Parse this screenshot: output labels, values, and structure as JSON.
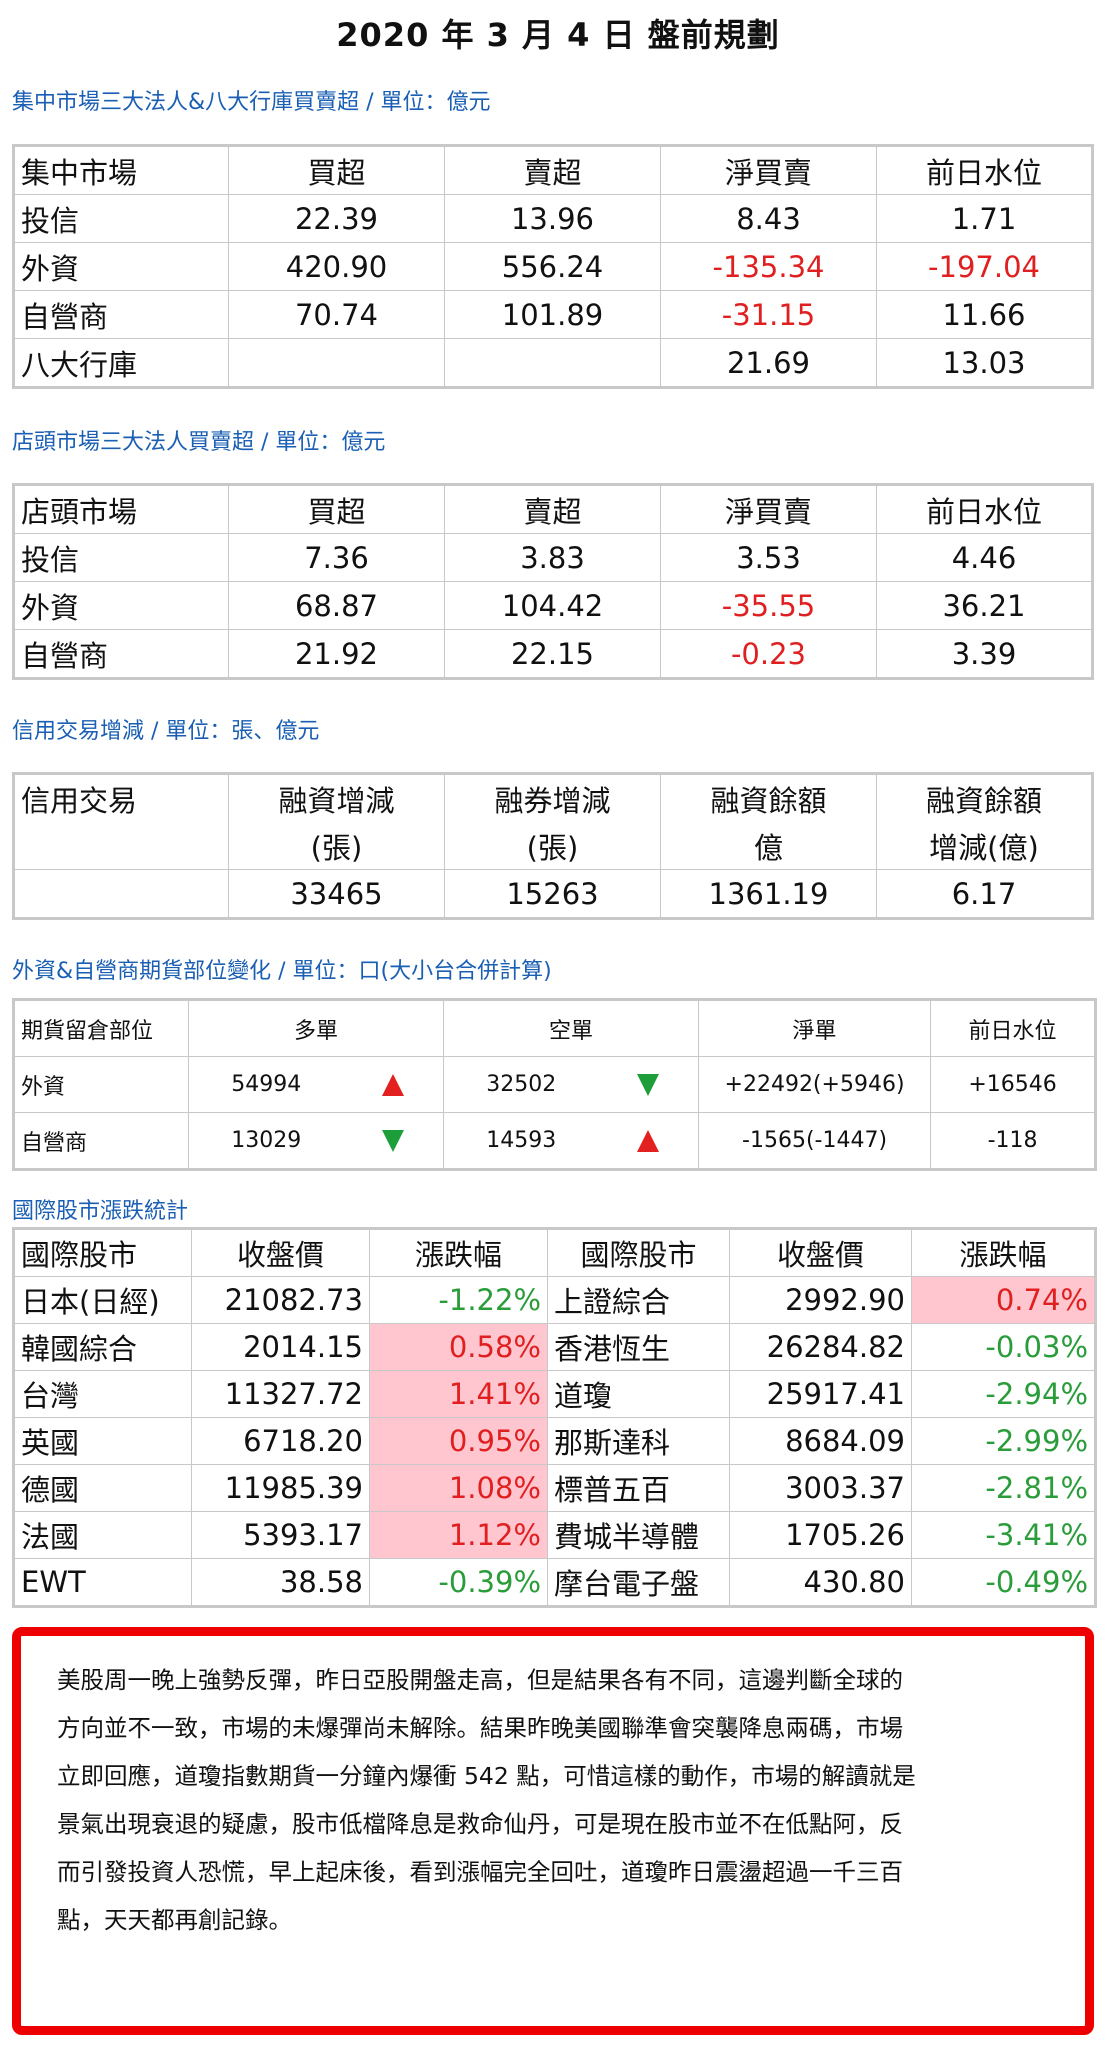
{
  "title": "2020 年 3 月 4 日  盤前規劃",
  "colors": {
    "section_title": "#1a5fb4",
    "negative": "#e02020",
    "positive_intl": "#2a9d3a",
    "highlight": "#ffc6cf",
    "border_box": "#ee0000"
  },
  "section1": {
    "title": "集中市場三大法人&八大行庫買賣超 / 單位：億元",
    "headers": [
      "集中市場",
      "買超",
      "賣超",
      "淨買賣",
      "前日水位"
    ],
    "rows": [
      [
        "投信",
        "22.39",
        "13.96",
        "8.43",
        "1.71"
      ],
      [
        "外資",
        "420.90",
        "556.24",
        "-135.34",
        "-197.04"
      ],
      [
        "自營商",
        "70.74",
        "101.89",
        "-31.15",
        "11.66"
      ],
      [
        "八大行庫",
        "",
        "",
        "21.69",
        "13.03"
      ]
    ]
  },
  "section2": {
    "title": "店頭市場三大法人買賣超 / 單位：億元",
    "headers": [
      "店頭市場",
      "買超",
      "賣超",
      "淨買賣",
      "前日水位"
    ],
    "rows": [
      [
        "投信",
        "7.36",
        "3.83",
        "3.53",
        "4.46"
      ],
      [
        "外資",
        "68.87",
        "104.42",
        "-35.55",
        "36.21"
      ],
      [
        "自營商",
        "21.92",
        "22.15",
        "-0.23",
        "3.39"
      ]
    ]
  },
  "section3": {
    "title": "信用交易增減 / 單位：張、億元",
    "header_row1": [
      "信用交易",
      "融資增減",
      "融券增減",
      "融資餘額",
      "融資餘額"
    ],
    "header_row2": [
      "",
      "(張)",
      "(張)",
      "億",
      "增減(億)"
    ],
    "values": [
      "",
      "33465",
      "15263",
      "1361.19",
      "6.17"
    ]
  },
  "section4": {
    "title": "外資&自營商期貨部位變化 / 單位：口(大小台合併計算)",
    "headers": [
      "期貨留倉部位",
      "多單",
      "空單",
      "淨單",
      "前日水位"
    ],
    "rows": [
      {
        "name": "外資",
        "long": "54994",
        "long_dir": "up",
        "short": "32502",
        "short_dir": "down",
        "net": "+22492(+5946)",
        "prev": "+16546"
      },
      {
        "name": "自營商",
        "long": "13029",
        "long_dir": "down",
        "short": "14593",
        "short_dir": "up",
        "net": "-1565(-1447)",
        "prev": "-118"
      }
    ]
  },
  "section5": {
    "title": "國際股市漲跌統計",
    "headers": [
      "國際股市",
      "收盤價",
      "漲跌幅",
      "國際股市",
      "收盤價",
      "漲跌幅"
    ],
    "rows": [
      {
        "l_name": "日本(日經)",
        "l_close": "21082.73",
        "l_chg": "-1.22%",
        "r_name": "上證綜合",
        "r_close": "2992.90",
        "r_chg": "0.74%"
      },
      {
        "l_name": "韓國綜合",
        "l_close": "2014.15",
        "l_chg": "0.58%",
        "r_name": "香港恆生",
        "r_close": "26284.82",
        "r_chg": "-0.03%"
      },
      {
        "l_name": "台灣",
        "l_close": "11327.72",
        "l_chg": "1.41%",
        "r_name": "道瓊",
        "r_close": "25917.41",
        "r_chg": "-2.94%"
      },
      {
        "l_name": "英國",
        "l_close": "6718.20",
        "l_chg": "0.95%",
        "r_name": "那斯達科",
        "r_close": "8684.09",
        "r_chg": "-2.99%"
      },
      {
        "l_name": "德國",
        "l_close": "11985.39",
        "l_chg": "1.08%",
        "r_name": "標普五百",
        "r_close": "3003.37",
        "r_chg": "-2.81%"
      },
      {
        "l_name": "法國",
        "l_close": "5393.17",
        "l_chg": "1.12%",
        "r_name": "費城半導體",
        "r_close": "1705.26",
        "r_chg": "-3.41%"
      },
      {
        "l_name": "EWT",
        "l_close": "38.58",
        "l_chg": "-0.39%",
        "r_name": "摩台電子盤",
        "r_close": "430.80",
        "r_chg": "-0.49%"
      }
    ]
  },
  "commentary": "美股周一晚上強勢反彈，昨日亞股開盤走高，但是結果各有不同，這邊判斷全球的\n方向並不一致，市場的未爆彈尚未解除。結果昨晚美國聯準會突襲降息兩碼，市場\n立即回應，道瓊指數期貨一分鐘內爆衝 542 點，可惜這樣的動作，市場的解讀就是\n景氣出現衰退的疑慮，股市低檔降息是救命仙丹，可是現在股市並不在低點阿，反\n而引發投資人恐慌，早上起床後，看到漲幅完全回吐，道瓊昨日震盪超過一千三百\n點，天天都再創記錄。"
}
